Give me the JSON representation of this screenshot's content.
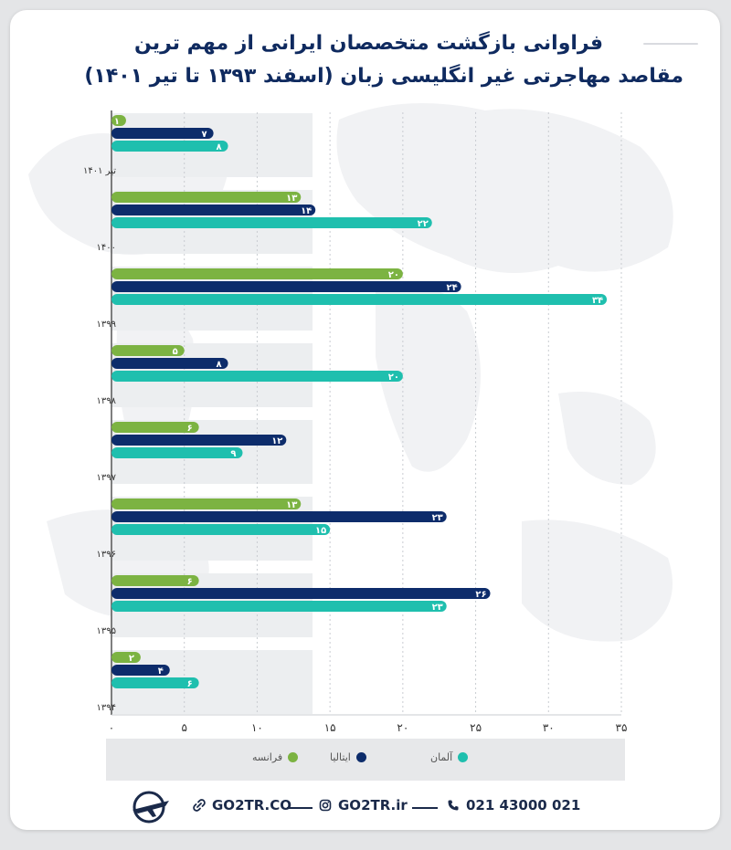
{
  "title": {
    "line1": "فراوانی بازگشت متخصصان ایرانی از مهم ترین",
    "line2": "مقاصد مهاجرتی غیر انگلیسی زبان (اسفند ۱۳۹۳ تا تیر ۱۴۰۱)"
  },
  "colors": {
    "france": "#7cb342",
    "italy": "#0d2c6b",
    "germany": "#1fbfae",
    "band": "#eceef0",
    "axis": "#555555"
  },
  "chart_data": {
    "type": "bar",
    "orientation": "horizontal",
    "categories": [
      "تیر ۱۴۰۱",
      "۱۴۰۰",
      "۱۳۹۹",
      "۱۳۹۸",
      "۱۳۹۷",
      "۱۳۹۶",
      "۱۳۹۵",
      "۱۳۹۴"
    ],
    "series": [
      {
        "name": "فرانسه",
        "color": "#7cb342",
        "values": [
          1,
          13,
          20,
          5,
          6,
          13,
          6,
          2
        ],
        "labels": [
          "۱",
          "۱۳",
          "۲۰",
          "۵",
          "۶",
          "۱۳",
          "۶",
          "۲"
        ]
      },
      {
        "name": "ایتالیا",
        "color": "#0d2c6b",
        "values": [
          7,
          14,
          24,
          8,
          12,
          23,
          26,
          4
        ],
        "labels": [
          "۷",
          "۱۴",
          "۲۴",
          "۸",
          "۱۲",
          "۲۳",
          "۲۶",
          "۴"
        ]
      },
      {
        "name": "آلمان",
        "color": "#1fbfae",
        "values": [
          8,
          22,
          34,
          20,
          9,
          15,
          23,
          6
        ],
        "labels": [
          "۸",
          "۲۲",
          "۳۴",
          "۲۰",
          "۹",
          "۱۵",
          "۲۳",
          "۶"
        ]
      }
    ],
    "xlim": [
      0,
      35
    ],
    "xticks": [
      0,
      5,
      10,
      15,
      20,
      25,
      30,
      35
    ],
    "xtick_labels": [
      "۰",
      "۵",
      "۱۰",
      "۱۵",
      "۲۰",
      "۲۵",
      "۳۰",
      "۳۵"
    ],
    "grid": true,
    "legend_position": "bottom"
  },
  "legend": {
    "germany": "آلمان",
    "italy": "ایتالیا",
    "france": "فرانسه"
  },
  "footer": {
    "phone": "021 43000 021",
    "instagram": "GO2TR.ir",
    "website": "GO2TR.CO",
    "logo_icon": "plane-logo-icon",
    "phone_icon": "phone-icon",
    "instagram_icon": "instagram-icon",
    "link_icon": "link-icon"
  }
}
